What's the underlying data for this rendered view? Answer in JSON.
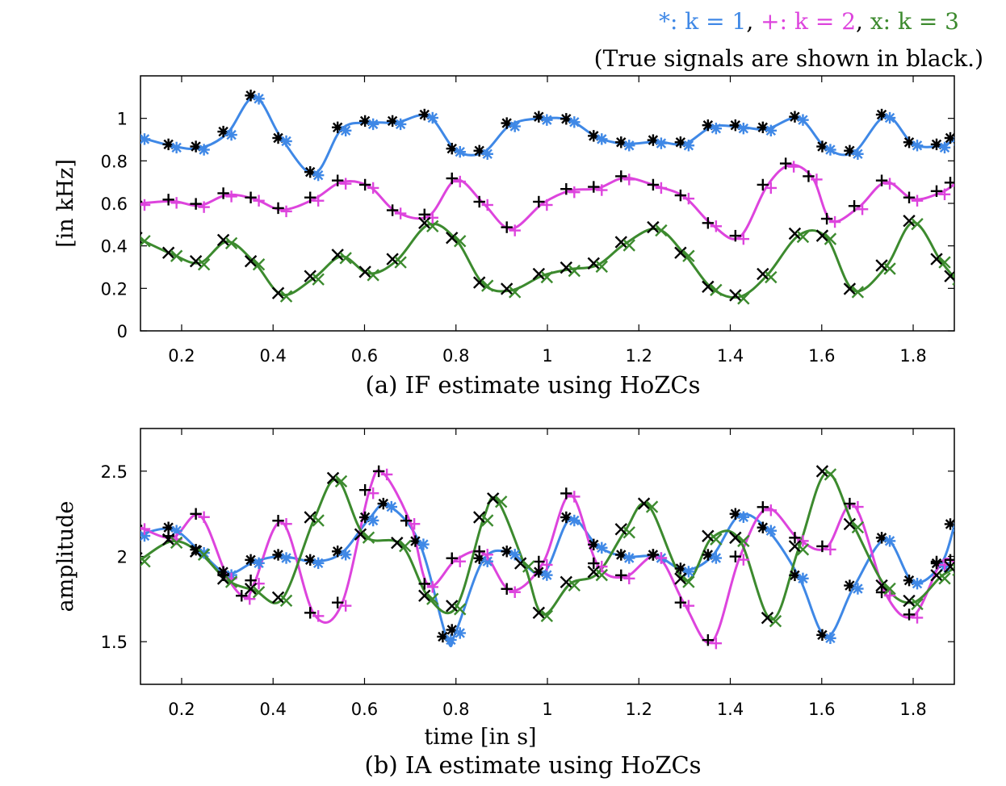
{
  "legend": {
    "line1": [
      {
        "text": "*: k = 1",
        "color": "#3f88e6"
      },
      {
        "text": ", ",
        "color": "#000000"
      },
      {
        "text": "+: k = 2",
        "color": "#dd44dd"
      },
      {
        "text": ", ",
        "color": "#000000"
      },
      {
        "text": "x: k = 3",
        "color": "#3c8a2e"
      }
    ],
    "line2": "(True signals are shown in black.)"
  },
  "colors": {
    "k1": "#3f88e6",
    "k2": "#dd44dd",
    "k3": "#3c8a2e",
    "truth": "#000000"
  },
  "chart_data": [
    {
      "type": "line",
      "caption": "(a) IF estimate using HoZCs",
      "xlabel": "",
      "ylabel": "[in kHz]",
      "xlim": [
        0.11,
        1.89
      ],
      "ylim": [
        0,
        1.2
      ],
      "xticks": [
        "0.2",
        "0.4",
        "0.6",
        "0.8",
        "1",
        "1.2",
        "1.4",
        "1.6",
        "1.8"
      ],
      "yticks": [
        "0",
        "0.2",
        "0.4",
        "0.6",
        "0.8",
        "1"
      ],
      "series": [
        {
          "marker": "*",
          "color": "#3f88e6",
          "points": [
            [
              0.11,
              0.91
            ],
            [
              0.18,
              0.87
            ],
            [
              0.24,
              0.86
            ],
            [
              0.3,
              0.93
            ],
            [
              0.36,
              1.1
            ],
            [
              0.42,
              0.9
            ],
            [
              0.49,
              0.74
            ],
            [
              0.55,
              0.95
            ],
            [
              0.61,
              0.98
            ],
            [
              0.67,
              0.98
            ],
            [
              0.74,
              1.01
            ],
            [
              0.8,
              0.85
            ],
            [
              0.86,
              0.84
            ],
            [
              0.92,
              0.97
            ],
            [
              0.99,
              1.0
            ],
            [
              1.05,
              0.99
            ],
            [
              1.11,
              0.91
            ],
            [
              1.17,
              0.88
            ],
            [
              1.24,
              0.89
            ],
            [
              1.3,
              0.88
            ],
            [
              1.36,
              0.96
            ],
            [
              1.42,
              0.96
            ],
            [
              1.48,
              0.95
            ],
            [
              1.55,
              1.0
            ],
            [
              1.61,
              0.86
            ],
            [
              1.67,
              0.84
            ],
            [
              1.74,
              1.01
            ],
            [
              1.8,
              0.88
            ],
            [
              1.86,
              0.87
            ],
            [
              1.89,
              0.9
            ]
          ]
        },
        {
          "marker": "+",
          "color": "#dd44dd",
          "points": [
            [
              0.11,
              0.6
            ],
            [
              0.18,
              0.61
            ],
            [
              0.24,
              0.59
            ],
            [
              0.3,
              0.64
            ],
            [
              0.36,
              0.62
            ],
            [
              0.42,
              0.57
            ],
            [
              0.49,
              0.62
            ],
            [
              0.55,
              0.7
            ],
            [
              0.61,
              0.68
            ],
            [
              0.67,
              0.56
            ],
            [
              0.74,
              0.54
            ],
            [
              0.8,
              0.71
            ],
            [
              0.86,
              0.6
            ],
            [
              0.92,
              0.48
            ],
            [
              0.99,
              0.6
            ],
            [
              1.05,
              0.66
            ],
            [
              1.11,
              0.67
            ],
            [
              1.17,
              0.72
            ],
            [
              1.24,
              0.68
            ],
            [
              1.3,
              0.63
            ],
            [
              1.36,
              0.5
            ],
            [
              1.42,
              0.44
            ],
            [
              1.48,
              0.68
            ],
            [
              1.53,
              0.78
            ],
            [
              1.58,
              0.72
            ],
            [
              1.62,
              0.52
            ],
            [
              1.68,
              0.58
            ],
            [
              1.74,
              0.7
            ],
            [
              1.8,
              0.62
            ],
            [
              1.86,
              0.65
            ],
            [
              1.89,
              0.69
            ]
          ]
        },
        {
          "marker": "x",
          "color": "#3c8a2e",
          "points": [
            [
              0.11,
              0.43
            ],
            [
              0.18,
              0.36
            ],
            [
              0.24,
              0.32
            ],
            [
              0.3,
              0.42
            ],
            [
              0.36,
              0.32
            ],
            [
              0.42,
              0.17
            ],
            [
              0.49,
              0.25
            ],
            [
              0.55,
              0.35
            ],
            [
              0.61,
              0.27
            ],
            [
              0.67,
              0.33
            ],
            [
              0.74,
              0.5
            ],
            [
              0.8,
              0.43
            ],
            [
              0.86,
              0.22
            ],
            [
              0.92,
              0.19
            ],
            [
              0.99,
              0.26
            ],
            [
              1.05,
              0.29
            ],
            [
              1.11,
              0.31
            ],
            [
              1.17,
              0.41
            ],
            [
              1.24,
              0.48
            ],
            [
              1.3,
              0.36
            ],
            [
              1.36,
              0.2
            ],
            [
              1.42,
              0.16
            ],
            [
              1.48,
              0.26
            ],
            [
              1.55,
              0.45
            ],
            [
              1.61,
              0.44
            ],
            [
              1.67,
              0.19
            ],
            [
              1.74,
              0.3
            ],
            [
              1.8,
              0.51
            ],
            [
              1.86,
              0.33
            ],
            [
              1.89,
              0.25
            ]
          ]
        }
      ]
    },
    {
      "type": "line",
      "caption": "(b) IA estimate using HoZCs",
      "xlabel": "time [in s]",
      "ylabel": "amplitude",
      "xlim": [
        0.11,
        1.89
      ],
      "ylim": [
        1.25,
        2.75
      ],
      "xticks": [
        "0.2",
        "0.4",
        "0.6",
        "0.8",
        "1",
        "1.2",
        "1.4",
        "1.6",
        "1.8"
      ],
      "yticks": [
        "1.5",
        "2",
        "2.5"
      ],
      "series": [
        {
          "marker": "*",
          "color": "#3f88e6",
          "points": [
            [
              0.11,
              2.13
            ],
            [
              0.18,
              2.16
            ],
            [
              0.24,
              2.03
            ],
            [
              0.3,
              1.9
            ],
            [
              0.36,
              1.97
            ],
            [
              0.42,
              2.0
            ],
            [
              0.49,
              1.97
            ],
            [
              0.55,
              2.02
            ],
            [
              0.61,
              2.22
            ],
            [
              0.65,
              2.3
            ],
            [
              0.72,
              2.08
            ],
            [
              0.78,
              1.52
            ],
            [
              0.8,
              1.56
            ],
            [
              0.86,
              1.98
            ],
            [
              0.92,
              2.02
            ],
            [
              0.99,
              1.9
            ],
            [
              1.05,
              2.22
            ],
            [
              1.11,
              2.06
            ],
            [
              1.17,
              2.0
            ],
            [
              1.24,
              2.0
            ],
            [
              1.3,
              1.92
            ],
            [
              1.36,
              2.0
            ],
            [
              1.42,
              2.24
            ],
            [
              1.48,
              2.16
            ],
            [
              1.55,
              1.88
            ],
            [
              1.61,
              1.53
            ],
            [
              1.67,
              1.82
            ],
            [
              1.74,
              2.1
            ],
            [
              1.8,
              1.85
            ],
            [
              1.86,
              1.95
            ],
            [
              1.89,
              2.18
            ]
          ]
        },
        {
          "marker": "+",
          "color": "#dd44dd",
          "points": [
            [
              0.11,
              2.17
            ],
            [
              0.18,
              2.11
            ],
            [
              0.24,
              2.24
            ],
            [
              0.3,
              1.88
            ],
            [
              0.34,
              1.76
            ],
            [
              0.36,
              1.85
            ],
            [
              0.42,
              2.2
            ],
            [
              0.49,
              1.66
            ],
            [
              0.55,
              1.72
            ],
            [
              0.61,
              2.38
            ],
            [
              0.64,
              2.49
            ],
            [
              0.7,
              2.2
            ],
            [
              0.74,
              1.83
            ],
            [
              0.8,
              1.98
            ],
            [
              0.86,
              2.02
            ],
            [
              0.92,
              1.8
            ],
            [
              0.99,
              1.96
            ],
            [
              1.05,
              2.36
            ],
            [
              1.11,
              1.95
            ],
            [
              1.17,
              1.88
            ],
            [
              1.24,
              2.0
            ],
            [
              1.3,
              1.72
            ],
            [
              1.36,
              1.5
            ],
            [
              1.42,
              1.99
            ],
            [
              1.48,
              2.28
            ],
            [
              1.55,
              2.1
            ],
            [
              1.61,
              2.05
            ],
            [
              1.67,
              2.3
            ],
            [
              1.74,
              1.78
            ],
            [
              1.8,
              1.65
            ],
            [
              1.86,
              1.96
            ],
            [
              1.89,
              1.97
            ]
          ]
        },
        {
          "marker": "x",
          "color": "#3c8a2e",
          "points": [
            [
              0.11,
              1.98
            ],
            [
              0.18,
              2.09
            ],
            [
              0.24,
              2.02
            ],
            [
              0.3,
              1.86
            ],
            [
              0.36,
              1.8
            ],
            [
              0.42,
              1.75
            ],
            [
              0.49,
              2.22
            ],
            [
              0.54,
              2.45
            ],
            [
              0.6,
              2.12
            ],
            [
              0.68,
              2.07
            ],
            [
              0.74,
              1.76
            ],
            [
              0.8,
              1.7
            ],
            [
              0.86,
              2.22
            ],
            [
              0.89,
              2.33
            ],
            [
              0.95,
              1.95
            ],
            [
              0.99,
              1.66
            ],
            [
              1.05,
              1.84
            ],
            [
              1.11,
              1.9
            ],
            [
              1.17,
              2.15
            ],
            [
              1.22,
              2.3
            ],
            [
              1.3,
              1.86
            ],
            [
              1.36,
              2.11
            ],
            [
              1.42,
              2.1
            ],
            [
              1.49,
              1.63
            ],
            [
              1.55,
              2.05
            ],
            [
              1.61,
              2.49
            ],
            [
              1.67,
              2.18
            ],
            [
              1.74,
              1.82
            ],
            [
              1.8,
              1.73
            ],
            [
              1.86,
              1.88
            ],
            [
              1.89,
              1.93
            ]
          ]
        }
      ]
    }
  ]
}
